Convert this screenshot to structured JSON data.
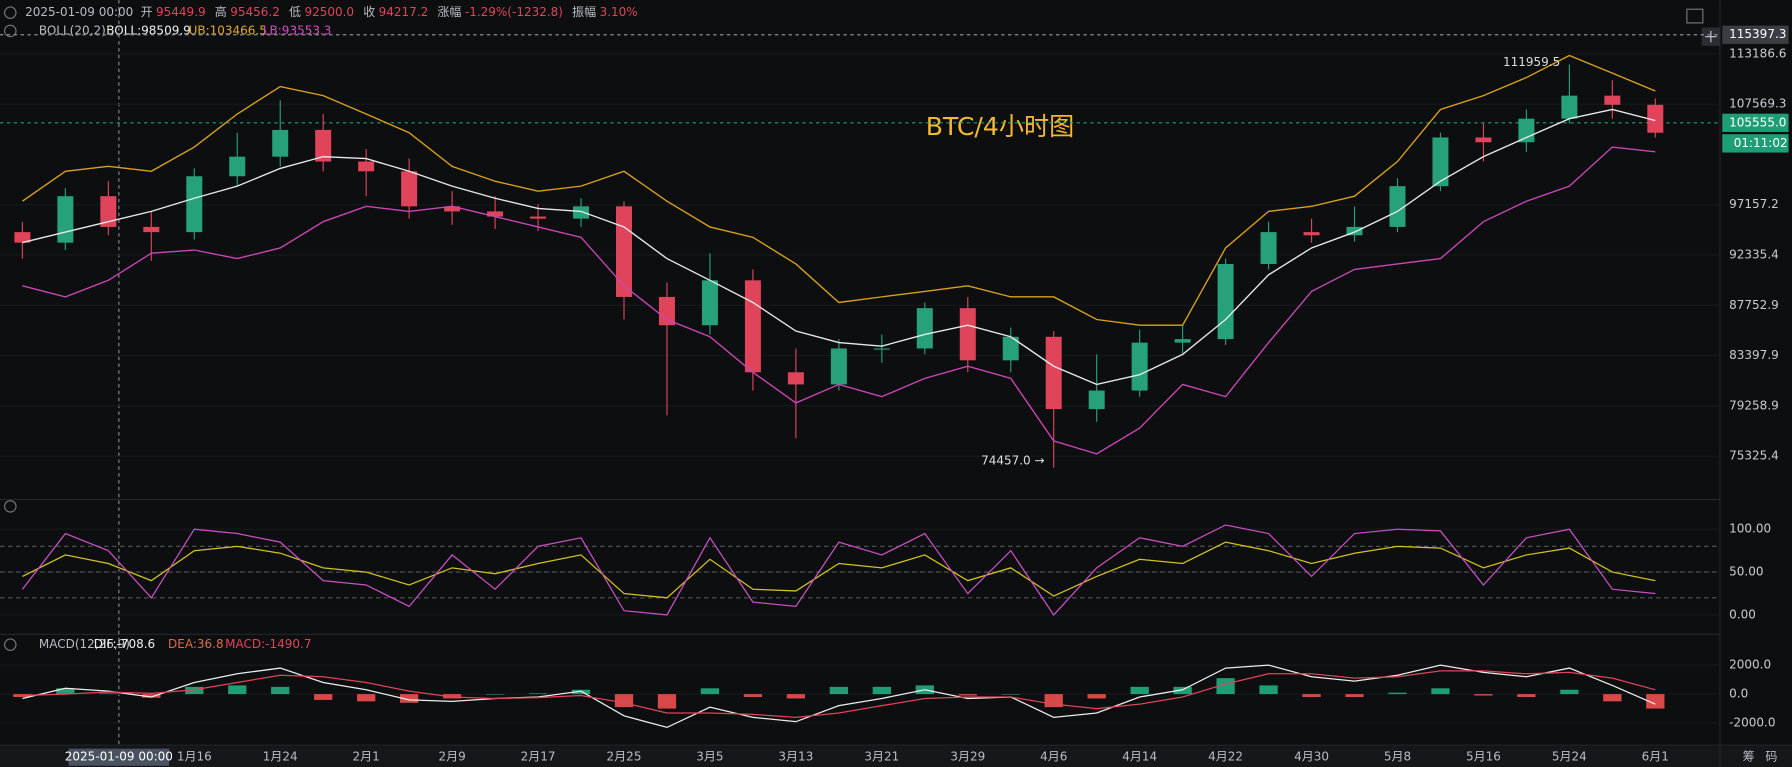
{
  "header": {
    "time": "2025-01-09 00:00",
    "fields": [
      {
        "label": "开",
        "value": "95449.9"
      },
      {
        "label": "高",
        "value": "95456.2"
      },
      {
        "label": "低",
        "value": "92500.0"
      },
      {
        "label": "收",
        "value": "94217.2"
      },
      {
        "label": "涨幅",
        "value": "-1.29%(-1232.8)"
      },
      {
        "label": "振幅",
        "value": "3.10%"
      }
    ],
    "boll": {
      "name": "BOLL(20,2)",
      "mid": "BOLL:98509.9",
      "ub": "UB:103466.5",
      "lb": "LB:93553.3"
    },
    "macd": {
      "name": "MACD(12,26,9)",
      "dif": "DIF:-708.6",
      "dea": "DEA:36.8",
      "macd": "MACD:-1490.7"
    }
  },
  "crosshair_time": "2025-01-09 00:00",
  "toolbar": [
    "筹",
    "码"
  ],
  "categories": [
    null,
    null,
    null,
    null,
    "1月16",
    null,
    "1月24",
    null,
    "2月1",
    null,
    "2月9",
    null,
    "2月17",
    null,
    "2月25",
    null,
    "3月5",
    null,
    "3月13",
    null,
    "3月21",
    null,
    "3月29",
    null,
    "4月6",
    null,
    "4月14",
    null,
    "4月22",
    null,
    "4月30",
    null,
    "5月8",
    null,
    "5月16",
    null,
    "5月24",
    null,
    "6月1"
  ],
  "chart_data": [
    {
      "type": "candlestick",
      "title": "BTC/4小时图",
      "log_scale": true,
      "ylim": [
        72260,
        119520
      ],
      "yticks": [
        113186.6,
        107569.3,
        97157.2,
        92335.4,
        87752.9,
        83397.9,
        79258.9,
        75325.4
      ],
      "crosshair_price": 115397.3,
      "last_price": {
        "value": 105555,
        "label": "105555.0"
      },
      "countdown": "01:11:02",
      "high_note": "111959.5",
      "low_note": "74457.0 →",
      "up_color": "#26a17b",
      "down_color": "#e0445a",
      "open": [
        94500,
        93500,
        98000,
        95000,
        94500,
        100000,
        102000,
        104800,
        101500,
        100500,
        97000,
        96500,
        96000,
        95800,
        97000,
        88500,
        86000,
        90000,
        82000,
        81000,
        84000,
        84000,
        87500,
        83000,
        85000,
        79000,
        80500,
        84500,
        84800,
        91500,
        94500,
        94200,
        95000,
        99000,
        104000,
        103500,
        106000,
        108500,
        107500
      ],
      "close": [
        93500,
        98000,
        95000,
        94500,
        100000,
        102000,
        104800,
        101500,
        100500,
        97000,
        96500,
        96000,
        95800,
        97000,
        88500,
        86000,
        90000,
        82000,
        81000,
        84000,
        84000,
        87500,
        83000,
        85000,
        79000,
        80500,
        84500,
        84800,
        91500,
        94500,
        94200,
        95000,
        99000,
        104000,
        103500,
        106000,
        108500,
        107500,
        104500
      ],
      "high": [
        95500,
        98800,
        99500,
        96500,
        100800,
        104500,
        108000,
        106500,
        102800,
        101800,
        98500,
        98000,
        97200,
        97800,
        97500,
        89800,
        92500,
        91000,
        84000,
        84800,
        85200,
        88000,
        88500,
        85800,
        85500,
        83500,
        85600,
        86000,
        92000,
        95500,
        95800,
        97000,
        99800,
        104500,
        105500,
        107000,
        111959.5,
        110200,
        108200
      ],
      "low": [
        92000,
        92800,
        94200,
        91800,
        93800,
        99000,
        101000,
        100500,
        98000,
        95800,
        95200,
        94800,
        94600,
        95000,
        86500,
        78500,
        85200,
        80500,
        76700,
        80500,
        82800,
        83500,
        82000,
        82000,
        74457.0,
        78000,
        80000,
        83600,
        84300,
        91000,
        93500,
        93600,
        94500,
        98500,
        101500,
        102500,
        105500,
        106000,
        104000
      ],
      "series": [
        {
          "color": "#d9a21b",
          "values": [
            97500,
            100500,
            101000,
            100500,
            103000,
            106500,
            109500,
            108500,
            106500,
            104500,
            101000,
            99500,
            98500,
            99000,
            100500,
            97500,
            95000,
            94000,
            91500,
            88000,
            88500,
            89000,
            89500,
            88500,
            88500,
            86500,
            86000,
            86000,
            93000,
            96500,
            97000,
            98000,
            101500,
            107000,
            108500,
            110500,
            113000,
            111000,
            109000
          ]
        },
        {
          "color": "#e8e8e8",
          "values": [
            93500,
            94500,
            95500,
            96500,
            97800,
            99000,
            100800,
            102000,
            101800,
            100500,
            99000,
            97800,
            96800,
            96500,
            95000,
            92000,
            90000,
            88000,
            85500,
            84500,
            84200,
            85200,
            86000,
            85000,
            82500,
            81000,
            81800,
            83500,
            86500,
            90500,
            93000,
            94500,
            96500,
            99500,
            102000,
            104000,
            106000,
            107000,
            105800
          ]
        },
        {
          "color": "#c946b5",
          "values": [
            89500,
            88500,
            90000,
            92500,
            92800,
            92000,
            93000,
            95500,
            97000,
            96500,
            97000,
            96000,
            95000,
            94000,
            89500,
            86500,
            85000,
            82000,
            79500,
            81000,
            80000,
            81500,
            82500,
            81500,
            76500,
            75500,
            77500,
            81000,
            80000,
            84500,
            89000,
            91000,
            91500,
            92000,
            95500,
            97500,
            99000,
            103000,
            102500
          ]
        }
      ]
    },
    {
      "type": "line",
      "ylim": [
        -16,
        124
      ],
      "yticks": [
        {
          "value": 100,
          "label": "100.00"
        },
        {
          "value": 50,
          "label": "50.00"
        },
        {
          "value": 0,
          "label": "0.00"
        }
      ],
      "hlines": [
        80,
        50,
        20
      ],
      "series": [
        {
          "color": "#d4c21e",
          "values": [
            45,
            70,
            60,
            40,
            75,
            80,
            72,
            55,
            50,
            35,
            55,
            48,
            60,
            70,
            25,
            20,
            65,
            30,
            28,
            60,
            55,
            70,
            40,
            55,
            22,
            45,
            65,
            60,
            85,
            75,
            60,
            72,
            80,
            78,
            55,
            70,
            78,
            50,
            40
          ]
        },
        {
          "color": "#c94fc4",
          "values": [
            30,
            95,
            75,
            20,
            100,
            95,
            85,
            40,
            35,
            10,
            70,
            30,
            80,
            90,
            5,
            0,
            90,
            15,
            10,
            85,
            70,
            95,
            25,
            75,
            0,
            55,
            90,
            80,
            105,
            95,
            45,
            95,
            100,
            98,
            35,
            90,
            100,
            30,
            25
          ]
        }
      ]
    },
    {
      "type": "macd",
      "ylim": [
        -3370,
        2940
      ],
      "yticks": [
        {
          "value": 2000,
          "label": "2000.0"
        },
        {
          "value": 0,
          "label": "0.0"
        },
        {
          "value": -2000,
          "label": "-2000.0"
        }
      ],
      "up_color": "#1f9e76",
      "down_color": "#d94848",
      "hist": [
        -200,
        400,
        50,
        -250,
        500,
        600,
        500,
        -400,
        -500,
        -600,
        -300,
        0,
        50,
        300,
        -900,
        -1000,
        400,
        -200,
        -300,
        500,
        500,
        600,
        -100,
        0,
        -900,
        -300,
        500,
        500,
        1100,
        600,
        -200,
        -200,
        100,
        400,
        -100,
        -200,
        300,
        -500,
        -1000
      ],
      "series": [
        {
          "color": "#ececec",
          "values": [
            -300,
            400,
            200,
            -200,
            800,
            1400,
            1800,
            800,
            300,
            -400,
            -500,
            -300,
            -200,
            200,
            -1500,
            -2300,
            -900,
            -1600,
            -1900,
            -800,
            -300,
            300,
            -300,
            -200,
            -1600,
            -1300,
            -200,
            300,
            1800,
            2000,
            1200,
            900,
            1300,
            2000,
            1500,
            1200,
            1800,
            600,
            -700
          ]
        },
        {
          "color": "#e0445a",
          "values": [
            -100,
            0,
            150,
            50,
            300,
            800,
            1300,
            1200,
            800,
            200,
            -200,
            -300,
            -250,
            -100,
            -600,
            -1300,
            -1300,
            -1400,
            -1600,
            -1300,
            -800,
            -300,
            -200,
            -200,
            -700,
            -1000,
            -700,
            -200,
            700,
            1400,
            1400,
            1100,
            1200,
            1600,
            1600,
            1400,
            1500,
            1100,
            300
          ]
        }
      ]
    }
  ]
}
